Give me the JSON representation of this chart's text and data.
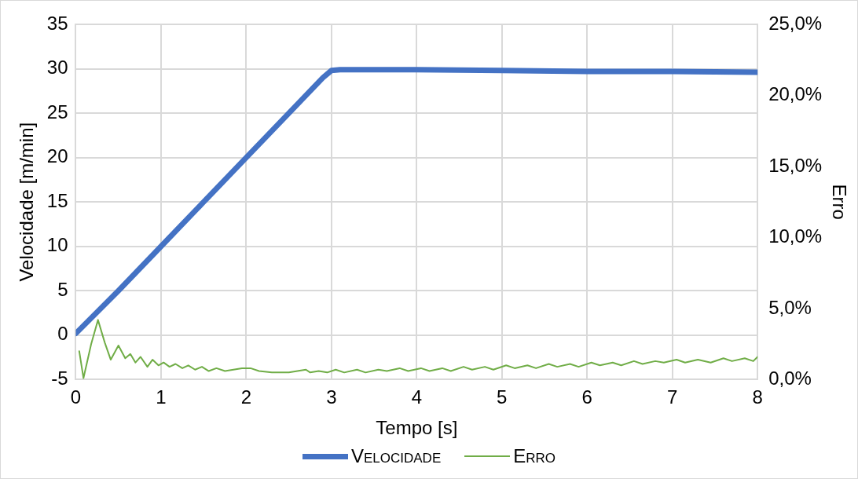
{
  "chart_data": {
    "type": "line",
    "xlabel": "Tempo [s]",
    "ylabel": "Velocidade [m/min]",
    "y2label": "Erro",
    "xlim": [
      0,
      8
    ],
    "xticks": [
      0,
      1,
      2,
      3,
      4,
      5,
      6,
      7,
      8
    ],
    "ylim": [
      -5,
      35
    ],
    "yticks": [
      -5,
      0,
      5,
      10,
      15,
      20,
      25,
      30,
      35
    ],
    "y2lim": [
      0,
      25
    ],
    "y2ticks": [
      {
        "value": 0,
        "label": "0,0%"
      },
      {
        "value": 5,
        "label": "5,0%"
      },
      {
        "value": 10,
        "label": "10,0%"
      },
      {
        "value": 15,
        "label": "15,0%"
      },
      {
        "value": 20,
        "label": "20,0%"
      },
      {
        "value": 25,
        "label": "25,0%"
      }
    ],
    "grid": true,
    "legend": "bottom",
    "marker": "none",
    "line_style": "solid",
    "series": [
      {
        "name": "Velocidade",
        "color": "#4472c4",
        "x": [
          0,
          0.5,
          1,
          1.5,
          2,
          2.5,
          2.9,
          3,
          3.1,
          4,
          5,
          6,
          7,
          8
        ],
        "values": [
          0.2,
          5,
          10,
          15,
          20,
          25,
          29,
          29.8,
          29.9,
          29.9,
          29.8,
          29.7,
          29.7,
          29.6
        ]
      },
      {
        "name": "Erro",
        "color": "#70ad47",
        "axis": "y2",
        "x": [
          0.04,
          0.09,
          0.18,
          0.26,
          0.34,
          0.41,
          0.5,
          0.58,
          0.64,
          0.7,
          0.76,
          0.84,
          0.9,
          0.97,
          1.03,
          1.1,
          1.17,
          1.25,
          1.32,
          1.4,
          1.48,
          1.56,
          1.65,
          1.75,
          1.85,
          1.95,
          2.05,
          2.15,
          2.3,
          2.5,
          2.6,
          2.7,
          2.75,
          2.85,
          2.95,
          3.05,
          3.15,
          3.3,
          3.4,
          3.55,
          3.65,
          3.8,
          3.9,
          4.05,
          4.15,
          4.3,
          4.4,
          4.55,
          4.65,
          4.8,
          4.9,
          5.05,
          5.15,
          5.3,
          5.4,
          5.55,
          5.65,
          5.8,
          5.9,
          6.05,
          6.15,
          6.3,
          6.4,
          6.55,
          6.65,
          6.8,
          6.9,
          7.05,
          7.15,
          7.3,
          7.45,
          7.6,
          7.7,
          7.85,
          7.95,
          8
        ],
        "values": [
          2.0,
          0.1,
          2.5,
          4.2,
          2.6,
          1.4,
          2.4,
          1.5,
          1.8,
          1.2,
          1.6,
          0.9,
          1.4,
          1.0,
          1.2,
          0.9,
          1.1,
          0.8,
          1.0,
          0.7,
          0.9,
          0.6,
          0.8,
          0.6,
          0.7,
          0.8,
          0.8,
          0.6,
          0.5,
          0.5,
          0.6,
          0.7,
          0.5,
          0.6,
          0.5,
          0.7,
          0.5,
          0.7,
          0.5,
          0.7,
          0.6,
          0.8,
          0.6,
          0.8,
          0.6,
          0.8,
          0.6,
          0.9,
          0.7,
          0.9,
          0.7,
          1.0,
          0.8,
          1.0,
          0.8,
          1.1,
          0.9,
          1.1,
          0.9,
          1.2,
          1.0,
          1.2,
          1.0,
          1.3,
          1.1,
          1.3,
          1.2,
          1.4,
          1.2,
          1.4,
          1.2,
          1.5,
          1.3,
          1.5,
          1.3,
          1.6
        ]
      }
    ]
  }
}
